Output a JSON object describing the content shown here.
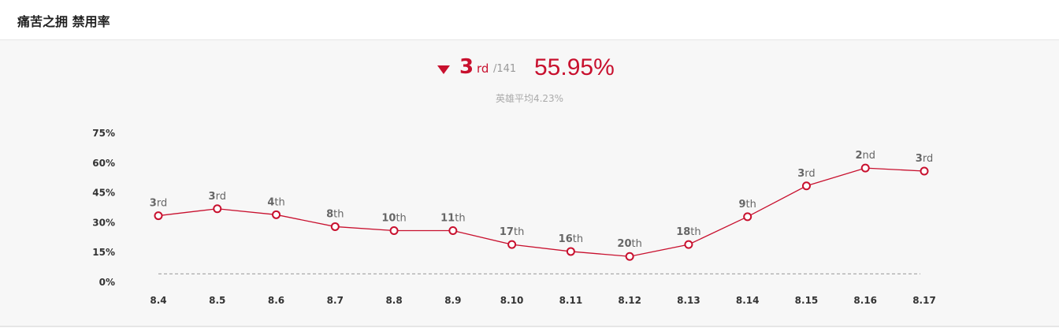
{
  "header": {
    "title": "痛苦之拥 禁用率"
  },
  "summary": {
    "rank_number": "3",
    "rank_suffix": "rd",
    "rank_total": "/141",
    "rate": "55.95%",
    "average": "英雄平均4.23%",
    "trend_icon": "down-triangle"
  },
  "colors": {
    "accent": "#c8102e",
    "grid": "#aaaaaa"
  },
  "chart_data": {
    "type": "line",
    "title": "",
    "xlabel": "",
    "ylabel": "",
    "categories": [
      "8.4",
      "8.5",
      "8.6",
      "8.7",
      "8.8",
      "8.9",
      "8.10",
      "8.11",
      "8.12",
      "8.13",
      "8.14",
      "8.15",
      "8.16",
      "8.17"
    ],
    "ylim": [
      0,
      75
    ],
    "yticks": [
      0,
      15,
      30,
      45,
      60,
      75
    ],
    "ytick_labels": [
      "0%",
      "15%",
      "30%",
      "45%",
      "60%",
      "75%"
    ],
    "series": [
      {
        "values": [
          33.5,
          37,
          34,
          28,
          26,
          26,
          19,
          15.5,
          13,
          19,
          33,
          48.5,
          57.5,
          55.95
        ],
        "labels": [
          "3rd",
          "3rd",
          "4th",
          "8th",
          "10th",
          "11th",
          "17th",
          "16th",
          "20th",
          "18th",
          "9th",
          "3rd",
          "2nd",
          "3rd"
        ]
      }
    ],
    "average_line": 4.23,
    "grid": false,
    "legend": "none"
  }
}
